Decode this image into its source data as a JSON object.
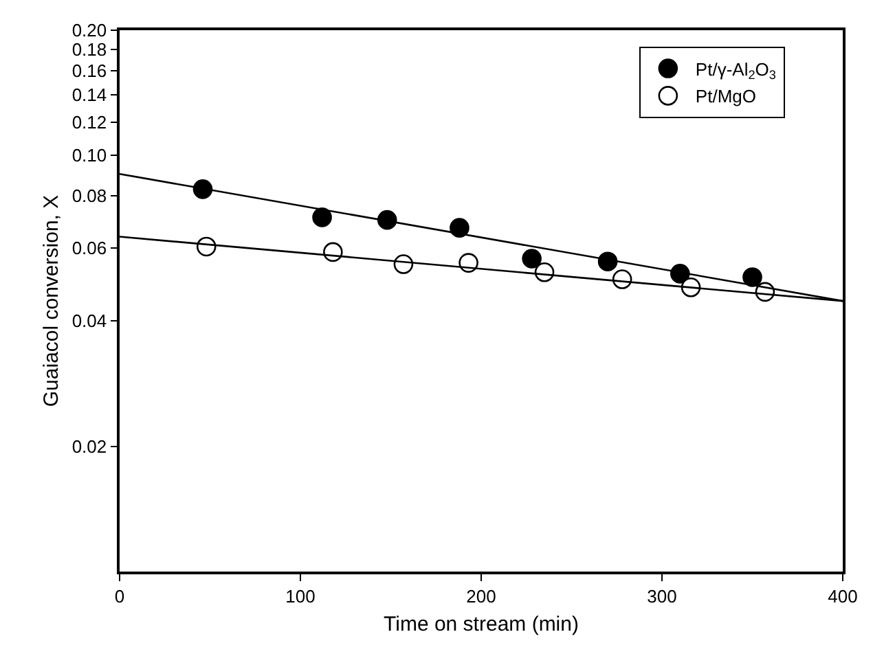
{
  "chart_data": {
    "type": "scatter",
    "xlabel": "Time on stream (min)",
    "ylabel": "Guaiacol conversion, X",
    "series": [
      {
        "name": "Pt/γ-Al$_{2}$O$_{3}$",
        "color": "#000000",
        "x": [
          46,
          112,
          148,
          188,
          228,
          270,
          310,
          350
        ],
        "values": [
          0.083,
          0.071,
          0.07,
          0.067,
          0.0565,
          0.0556,
          0.052,
          0.051
        ]
      },
      {
        "name": "Pt/MgO",
        "color": "#ffffff",
        "x": [
          48,
          118,
          157,
          193,
          235,
          278,
          316,
          357
        ],
        "values": [
          0.0604,
          0.0586,
          0.0548,
          0.0552,
          0.0524,
          0.0504,
          0.0482,
          0.047
        ]
      },
      {
        "type": "line",
        "color": "#000000",
        "marker": "none",
        "x": [
          0,
          400
        ],
        "values": [
          0.0903,
          0.0447
        ]
      },
      {
        "type": "line",
        "color": "#000000",
        "marker": "none",
        "x": [
          0,
          400
        ],
        "values": [
          0.0638,
          0.0447
        ]
      }
    ],
    "marker": "circle",
    "log": "y",
    "legend": "top right",
    "xlim": [
      0,
      400
    ],
    "xticks": [
      0,
      100,
      200,
      300,
      400
    ],
    "ylim": [
      0.01,
      0.2
    ],
    "yticks": [
      0.02,
      0.04,
      0.06,
      0.08,
      {
        "value": 0.1,
        "label": "0.10"
      },
      0.12,
      0.14,
      0.16,
      0.18,
      {
        "value": 0.2,
        "label": "0.20"
      }
    ]
  }
}
